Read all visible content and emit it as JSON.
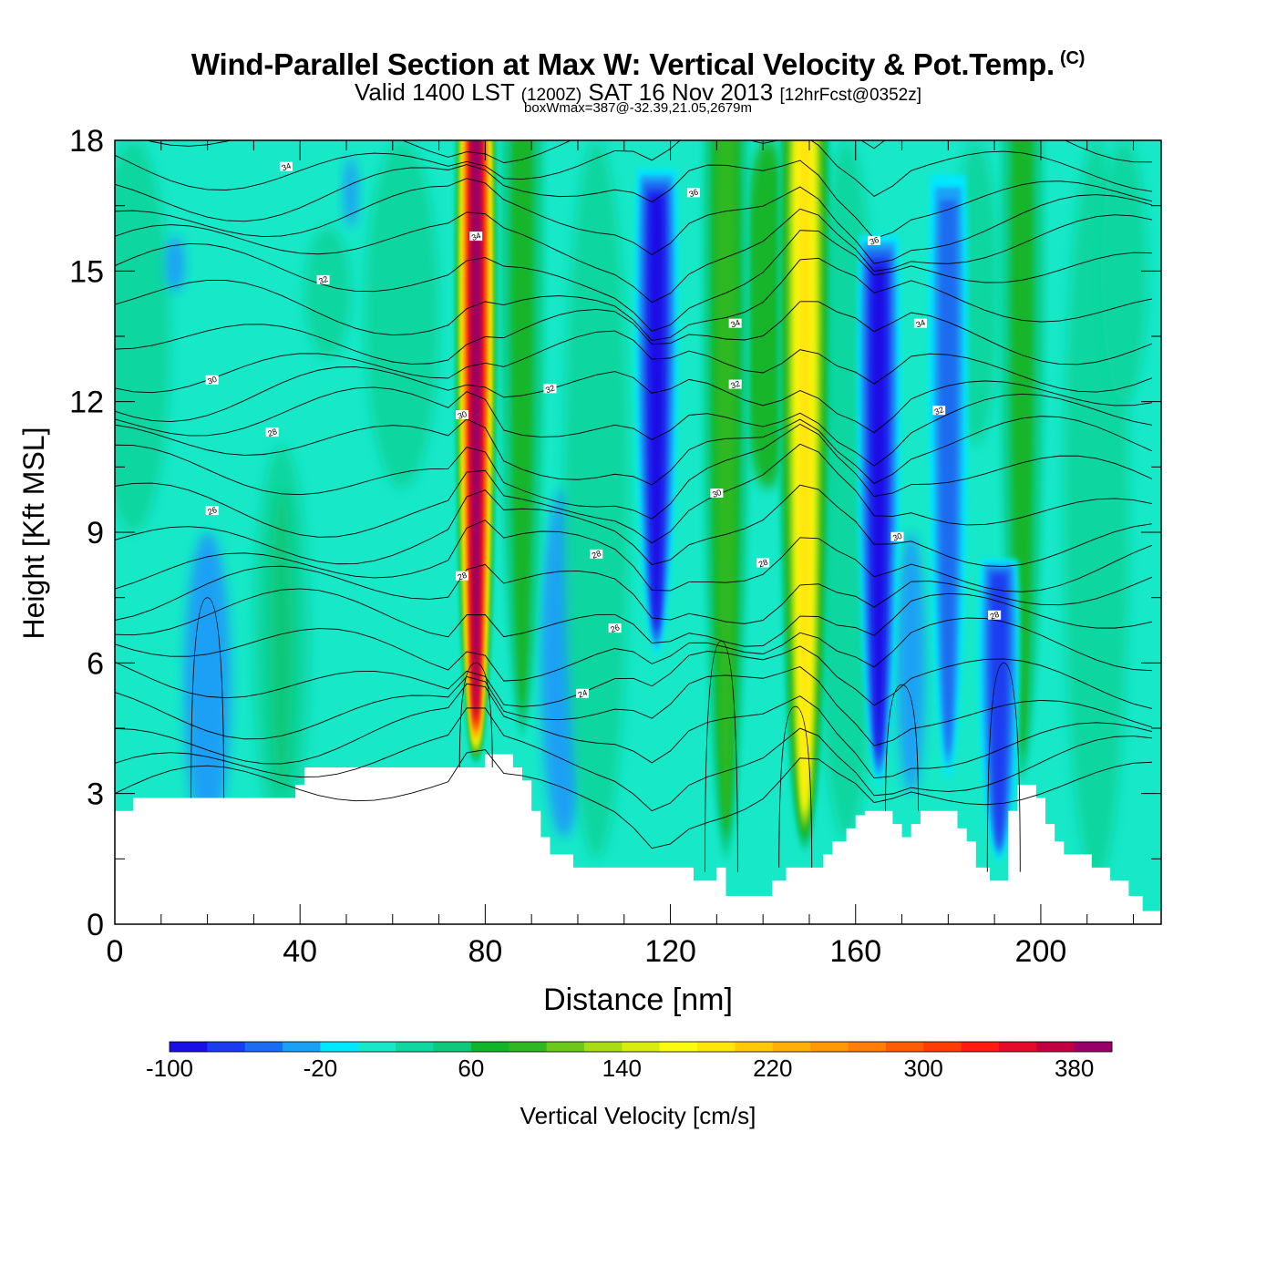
{
  "title": {
    "main": "Wind-Parallel Section at Max W: Vertical Velocity & Pot.Temp.",
    "copyright": "(C)",
    "valid_prefix": "Valid 1400 LST",
    "valid_utc": "(1200Z)",
    "valid_date": "SAT 16 Nov 2013",
    "forecast": "[12hrFcst@0352z]",
    "box_info": "boxWmax=387@-32.39,21.05,2679m"
  },
  "chart_data": {
    "type": "heatmap",
    "xlabel": "Distance [nm]",
    "ylabel": "Height [Kft MSL]",
    "xlim": [
      0,
      226
    ],
    "ylim": [
      0,
      18
    ],
    "x_ticks": [
      "0",
      "40",
      "80",
      "120",
      "160",
      "200"
    ],
    "y_ticks": [
      "0",
      "3",
      "6",
      "9",
      "12",
      "15",
      "18"
    ],
    "colorbar": {
      "label": "Vertical Velocity [cm/s]",
      "tick_labels": [
        "-100",
        "-20",
        "60",
        "140",
        "220",
        "300",
        "380"
      ],
      "tick_values": [
        -100,
        -20,
        60,
        140,
        220,
        300,
        380
      ],
      "levels": [
        -100,
        -80,
        -60,
        -40,
        -20,
        0,
        20,
        40,
        60,
        80,
        100,
        120,
        140,
        160,
        180,
        200,
        220,
        240,
        260,
        280,
        300,
        320,
        340,
        360,
        380,
        400
      ],
      "colors": [
        "#1a10e6",
        "#1a3cf0",
        "#1a6cf0",
        "#1aa0f5",
        "#00e8ff",
        "#16e8c8",
        "#10d6a0",
        "#10c87a",
        "#12b52a",
        "#2fb823",
        "#6cc81a",
        "#a8dc14",
        "#d8ec10",
        "#fbfb10",
        "#ffe60a",
        "#ffc808",
        "#ffb008",
        "#ff9a06",
        "#ff7e08",
        "#ff5c06",
        "#ff3c06",
        "#ff1a12",
        "#e60a2a",
        "#c00040",
        "#960068"
      ]
    },
    "vertical_velocity_features": [
      {
        "x": 78,
        "base": 3.6,
        "top": 18,
        "peak": 387
      },
      {
        "x": 149,
        "base": 1.5,
        "top": 18,
        "peak": 200
      },
      {
        "x": 88,
        "base": 4,
        "top": 18,
        "peak": 80
      },
      {
        "x": 132,
        "base": 1.2,
        "top": 18,
        "peak": 90
      },
      {
        "x": 196,
        "base": 3,
        "top": 18,
        "peak": 75
      },
      {
        "x": 117,
        "base": 6,
        "top": 17.5,
        "peak": -90
      },
      {
        "x": 165,
        "base": 3,
        "top": 16,
        "peak": -85
      },
      {
        "x": 180,
        "base": 3,
        "top": 17.5,
        "peak": -45
      },
      {
        "x": 191,
        "base": 1.3,
        "top": 8.5,
        "peak": -70
      }
    ],
    "theta_contour_labels": [
      {
        "x": 37,
        "y": 17.4,
        "text": "34"
      },
      {
        "x": 78,
        "y": 15.8,
        "text": "34"
      },
      {
        "x": 45,
        "y": 14.8,
        "text": "32"
      },
      {
        "x": 21,
        "y": 12.5,
        "text": "30"
      },
      {
        "x": 34,
        "y": 11.3,
        "text": "28"
      },
      {
        "x": 21,
        "y": 9.5,
        "text": "26"
      },
      {
        "x": 75,
        "y": 11.7,
        "text": "30"
      },
      {
        "x": 75,
        "y": 8.0,
        "text": "28"
      },
      {
        "x": 94,
        "y": 12.3,
        "text": "32"
      },
      {
        "x": 104,
        "y": 8.5,
        "text": "28"
      },
      {
        "x": 108,
        "y": 6.8,
        "text": "26"
      },
      {
        "x": 101,
        "y": 5.3,
        "text": "24"
      },
      {
        "x": 125,
        "y": 16.8,
        "text": "36"
      },
      {
        "x": 134,
        "y": 13.8,
        "text": "34"
      },
      {
        "x": 134,
        "y": 12.4,
        "text": "32"
      },
      {
        "x": 130,
        "y": 9.9,
        "text": "30"
      },
      {
        "x": 140,
        "y": 8.3,
        "text": "28"
      },
      {
        "x": 164,
        "y": 15.7,
        "text": "36"
      },
      {
        "x": 174,
        "y": 13.8,
        "text": "34"
      },
      {
        "x": 178,
        "y": 11.8,
        "text": "32"
      },
      {
        "x": 169,
        "y": 8.9,
        "text": "30"
      },
      {
        "x": 190,
        "y": 7.1,
        "text": "28"
      }
    ]
  }
}
